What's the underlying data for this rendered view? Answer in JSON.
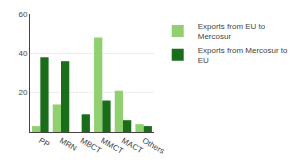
{
  "chart_data": {
    "type": "bar",
    "categories": [
      "PP",
      "MRN",
      "MBCT",
      "MMCT",
      "MACT",
      "Others"
    ],
    "series": [
      {
        "name": "Exports from EU to\nMercosur",
        "color": "#90d070",
        "values": [
          3,
          14,
          0,
          48,
          21,
          4
        ]
      },
      {
        "name": "Exports from Mercosur to\nEU",
        "color": "#1a6e1a",
        "values": [
          38,
          36,
          9,
          16,
          6,
          3
        ]
      }
    ],
    "ylim": [
      0,
      60
    ],
    "yticks": [
      20,
      40,
      60
    ],
    "grid": true,
    "legend": "upper right"
  }
}
